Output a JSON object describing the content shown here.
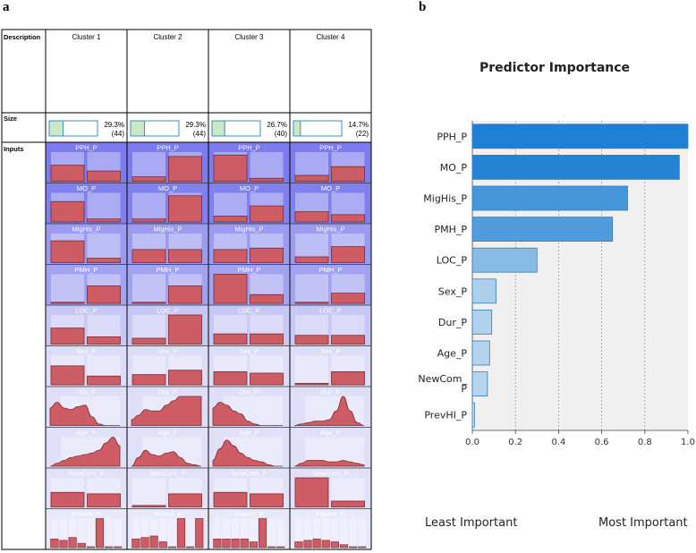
{
  "panel_a": {
    "letter": "a",
    "header": {
      "description": "Description",
      "size": "Size",
      "inputs": "Inputs"
    },
    "clusters": [
      {
        "name": "Cluster 1",
        "percent": "29.3%",
        "count": "(44)",
        "fraction": 0.293
      },
      {
        "name": "Cluster 2",
        "percent": "29.3%",
        "count": "(44)",
        "fraction": 0.293
      },
      {
        "name": "Cluster 3",
        "percent": "26.7%",
        "count": "(40)",
        "fraction": 0.267
      },
      {
        "name": "Cluster 4",
        "percent": "14.7%",
        "count": "(22)",
        "fraction": 0.147
      }
    ],
    "predictors": [
      {
        "name": "PPH_P",
        "importance": 1.0,
        "kind": "bars",
        "values": [
          [
            0.55,
            0.35
          ],
          [
            0.15,
            0.85
          ],
          [
            0.9,
            0.1
          ],
          [
            0.2,
            0.5
          ]
        ]
      },
      {
        "name": "MO_P",
        "importance": 0.96,
        "kind": "bars",
        "values": [
          [
            0.7,
            0.1
          ],
          [
            0.1,
            0.9
          ],
          [
            0.2,
            0.55
          ],
          [
            0.35,
            0.25
          ]
        ]
      },
      {
        "name": "MigHis_P",
        "importance": 0.72,
        "kind": "bars",
        "values": [
          [
            0.75,
            0.15
          ],
          [
            0.45,
            0.45
          ],
          [
            0.45,
            0.5
          ],
          [
            0.2,
            0.55
          ]
        ]
      },
      {
        "name": "PMH_P",
        "importance": 0.65,
        "kind": "bars",
        "values": [
          [
            0.0,
            0.6
          ],
          [
            0.0,
            0.6
          ],
          [
            1.0,
            0.3
          ],
          [
            0.0,
            0.35
          ]
        ]
      },
      {
        "name": "LOC_P",
        "importance": 0.3,
        "kind": "bars",
        "values": [
          [
            0.55,
            0.25
          ],
          [
            0.2,
            1.0
          ],
          [
            0.35,
            0.35
          ],
          [
            0.3,
            0.3
          ]
        ]
      },
      {
        "name": "Sex_P",
        "importance": 0.11,
        "kind": "bars",
        "values": [
          [
            0.65,
            0.3
          ],
          [
            0.35,
            0.5
          ],
          [
            0.45,
            0.4
          ],
          [
            0.05,
            0.45
          ]
        ]
      },
      {
        "name": "Dur_P",
        "importance": 0.09,
        "kind": "density",
        "values": [
          [
            0.6,
            0.8,
            0.6,
            0.55,
            0.65,
            0.7,
            0.3,
            0.05,
            0.0,
            0.0,
            0.0
          ],
          [
            0.2,
            0.35,
            0.55,
            0.5,
            0.5,
            0.7,
            0.85,
            1.0,
            1.0,
            1.0,
            1.0
          ],
          [
            0.6,
            0.8,
            0.7,
            0.5,
            0.4,
            0.15,
            0.05,
            0.0,
            0.0,
            0.0,
            0.0
          ],
          [
            0.0,
            0.05,
            0.1,
            0.15,
            0.15,
            0.2,
            0.5,
            1.0,
            0.5,
            0.1,
            0.0
          ]
        ]
      },
      {
        "name": "Age_P",
        "importance": 0.08,
        "kind": "density",
        "values": [
          [
            0.0,
            0.1,
            0.2,
            0.3,
            0.35,
            0.4,
            0.45,
            0.55,
            0.8,
            1.0,
            0.7
          ],
          [
            0.0,
            0.3,
            0.55,
            0.4,
            0.35,
            0.45,
            0.5,
            0.3,
            0.1,
            0.05,
            0.0
          ],
          [
            0.2,
            0.6,
            0.9,
            0.7,
            0.45,
            0.3,
            0.2,
            0.15,
            0.05,
            0.0,
            0.0
          ],
          [
            0.0,
            0.1,
            0.2,
            0.2,
            0.2,
            0.15,
            0.15,
            0.2,
            0.15,
            0.1,
            0.05
          ]
        ]
      },
      {
        "name": "NewCom_P",
        "importance": 0.07,
        "kind": "bars",
        "values": [
          [
            0.5,
            0.45
          ],
          [
            0.05,
            0.45
          ],
          [
            0.5,
            0.45
          ],
          [
            1.0,
            0.2
          ]
        ]
      },
      {
        "name": "PrevHI_P",
        "importance": 0.01,
        "kind": "multibars",
        "values": [
          [
            0.3,
            0.25,
            0.35,
            0.15,
            0.0,
            1.0,
            0.0,
            0.0
          ],
          [
            0.3,
            0.35,
            0.4,
            0.2,
            0.0,
            1.0,
            0.0,
            1.0
          ],
          [
            0.3,
            0.3,
            0.3,
            0.3,
            0.2,
            1.0,
            0.0,
            0.0
          ],
          [
            0.2,
            0.25,
            0.3,
            0.25,
            0.2,
            0.1,
            0.0,
            0.0
          ]
        ]
      }
    ]
  },
  "panel_b": {
    "letter": "b",
    "least_label": "Least Important",
    "most_label": "Most Important"
  },
  "chart_data": {
    "type": "bar",
    "orientation": "horizontal",
    "title": "Predictor Importance",
    "categories": [
      "PPH_P",
      "MO_P",
      "MigHis_P",
      "PMH_P",
      "LOC_P",
      "Sex_P",
      "Dur_P",
      "Age_P",
      "NewCom_P",
      "PrevHI_P"
    ],
    "category_labels": [
      [
        "PPH_P"
      ],
      [
        "MO_P"
      ],
      [
        "MigHis_P"
      ],
      [
        "PMH_P"
      ],
      [
        "LOC_P"
      ],
      [
        "Sex_P"
      ],
      [
        "Dur_P"
      ],
      [
        "Age_P"
      ],
      [
        "NewCom_",
        "P"
      ],
      [
        "PrevHI_P"
      ]
    ],
    "values": [
      1.0,
      0.96,
      0.72,
      0.65,
      0.3,
      0.11,
      0.09,
      0.08,
      0.07,
      0.01
    ],
    "xlim": [
      0.0,
      1.0
    ],
    "xticks": [
      "0.0",
      "0.2",
      "0.4",
      "0.6",
      "0.8",
      "1.0"
    ],
    "grid": true,
    "xlabel": "",
    "ylabel": ""
  }
}
